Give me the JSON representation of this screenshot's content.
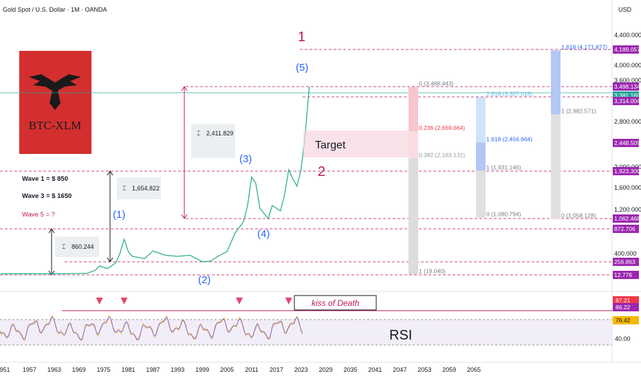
{
  "header": {
    "symbol_title": "Gold Spot / U.S. Dollar · 1M · OANDA",
    "currency": "USD"
  },
  "logo": {
    "text": "BTC-XLM"
  },
  "colors": {
    "background": "#ffffff",
    "price_line": "#2eae8f",
    "dashed": "#c2185b",
    "wave": "#2962ff",
    "rsi_line": "#7e57c2",
    "rsi_fast": "#f5b800"
  },
  "chart_data": {
    "type": "line",
    "title": "Gold Spot / U.S. Dollar · 1M · OANDA",
    "xlabel": "",
    "ylabel": "USD",
    "x_ticks": [
      "951",
      "1957",
      "1963",
      "1969",
      "1975",
      "1981",
      "1987",
      "1993",
      "1999",
      "2005",
      "2011",
      "2017",
      "2023",
      "2029",
      "2035",
      "2041",
      "2047",
      "2053",
      "2059",
      "2065"
    ],
    "y_ticks": [
      "4,400.000",
      "4,000.000",
      "3,600.000",
      "2,800.000",
      "2,000.000",
      "1,600.000",
      "1,200.000",
      "400.000"
    ],
    "price_axis_tags": [
      {
        "value": "4,189.057",
        "color": "#9c27b0"
      },
      {
        "value": "3,498.134",
        "color": "#9c27b0"
      },
      {
        "value": "3,381.160",
        "color": "#26a69a"
      },
      {
        "value": "3,314.004",
        "color": "#9c27b0"
      },
      {
        "value": "2,448.509",
        "color": "#9c27b0"
      },
      {
        "value": "1,923.300",
        "color": "#9c27b0"
      },
      {
        "value": "1,062.468",
        "color": "#9c27b0"
      },
      {
        "value": "872.706",
        "color": "#9c27b0"
      },
      {
        "value": "256.863",
        "color": "#9c27b0"
      },
      {
        "value": "12.776",
        "color": "#9c27b0"
      }
    ],
    "rsi_axis_tags": [
      {
        "value": "87.21",
        "color": "#f23645"
      },
      {
        "value": "86.22",
        "color": "#9c27b0"
      },
      {
        "value": "76.42",
        "color": "#f5b800"
      }
    ],
    "rsi_ticks": [
      "40.00"
    ],
    "series": [
      {
        "points": [
          [
            1950,
            35
          ],
          [
            1955,
            35
          ],
          [
            1960,
            35
          ],
          [
            1965,
            35
          ],
          [
            1968,
            38
          ],
          [
            1971,
            42
          ],
          [
            1973,
            100
          ],
          [
            1974,
            180
          ],
          [
            1976,
            130
          ],
          [
            1978,
            240
          ],
          [
            1979,
            420
          ],
          [
            1980,
            680
          ],
          [
            1981,
            450
          ],
          [
            1982,
            360
          ],
          [
            1985,
            320
          ],
          [
            1987,
            460
          ],
          [
            1990,
            380
          ],
          [
            1993,
            360
          ],
          [
            1996,
            380
          ],
          [
            1999,
            260
          ],
          [
            2001,
            270
          ],
          [
            2003,
            370
          ],
          [
            2005,
            450
          ],
          [
            2007,
            800
          ],
          [
            2008,
            900
          ],
          [
            2009,
            1000
          ],
          [
            2010,
            1300
          ],
          [
            2011,
            1820
          ],
          [
            2012,
            1700
          ],
          [
            2013,
            1250
          ],
          [
            2015,
            1060
          ],
          [
            2016,
            1300
          ],
          [
            2018,
            1200
          ],
          [
            2019,
            1500
          ],
          [
            2020,
            1950
          ],
          [
            2021,
            1780
          ],
          [
            2022,
            1650
          ],
          [
            2023,
            1950
          ],
          [
            2024,
            2600
          ],
          [
            2025,
            3500
          ]
        ]
      }
    ],
    "rsi_peaks": [
      1974,
      1980,
      2008,
      2020,
      2025
    ]
  },
  "annotations": {
    "wave_labels": [
      "(1)",
      "(2)",
      "(3)",
      "(4)",
      "(5)"
    ],
    "big_labels": [
      "1",
      "2"
    ],
    "target_label": "Target",
    "measurements": [
      "860.244",
      "1,654.822",
      "2,411.829"
    ],
    "notes": [
      "Wave 1 = $ 850",
      "Wave 3 = $ 1650",
      "Wave 5 = ?"
    ],
    "kiss_label": "kiss of Death",
    "rsi_label": "RSI",
    "fib_a": [
      "0 (3,488.443)",
      "0.236 (2,669.664)",
      "0.382 (2,163.131)",
      "1 (19.040)"
    ],
    "fib_b": [
      "2.618 (3,307.016)",
      "1.618 (2,456.664)",
      "1 (1,931.146)",
      "0 (1,080.794)"
    ],
    "fib_c": [
      "1.618 (4,171.877)",
      "1 (2,982.571)",
      "0 (1,058.128)"
    ]
  }
}
